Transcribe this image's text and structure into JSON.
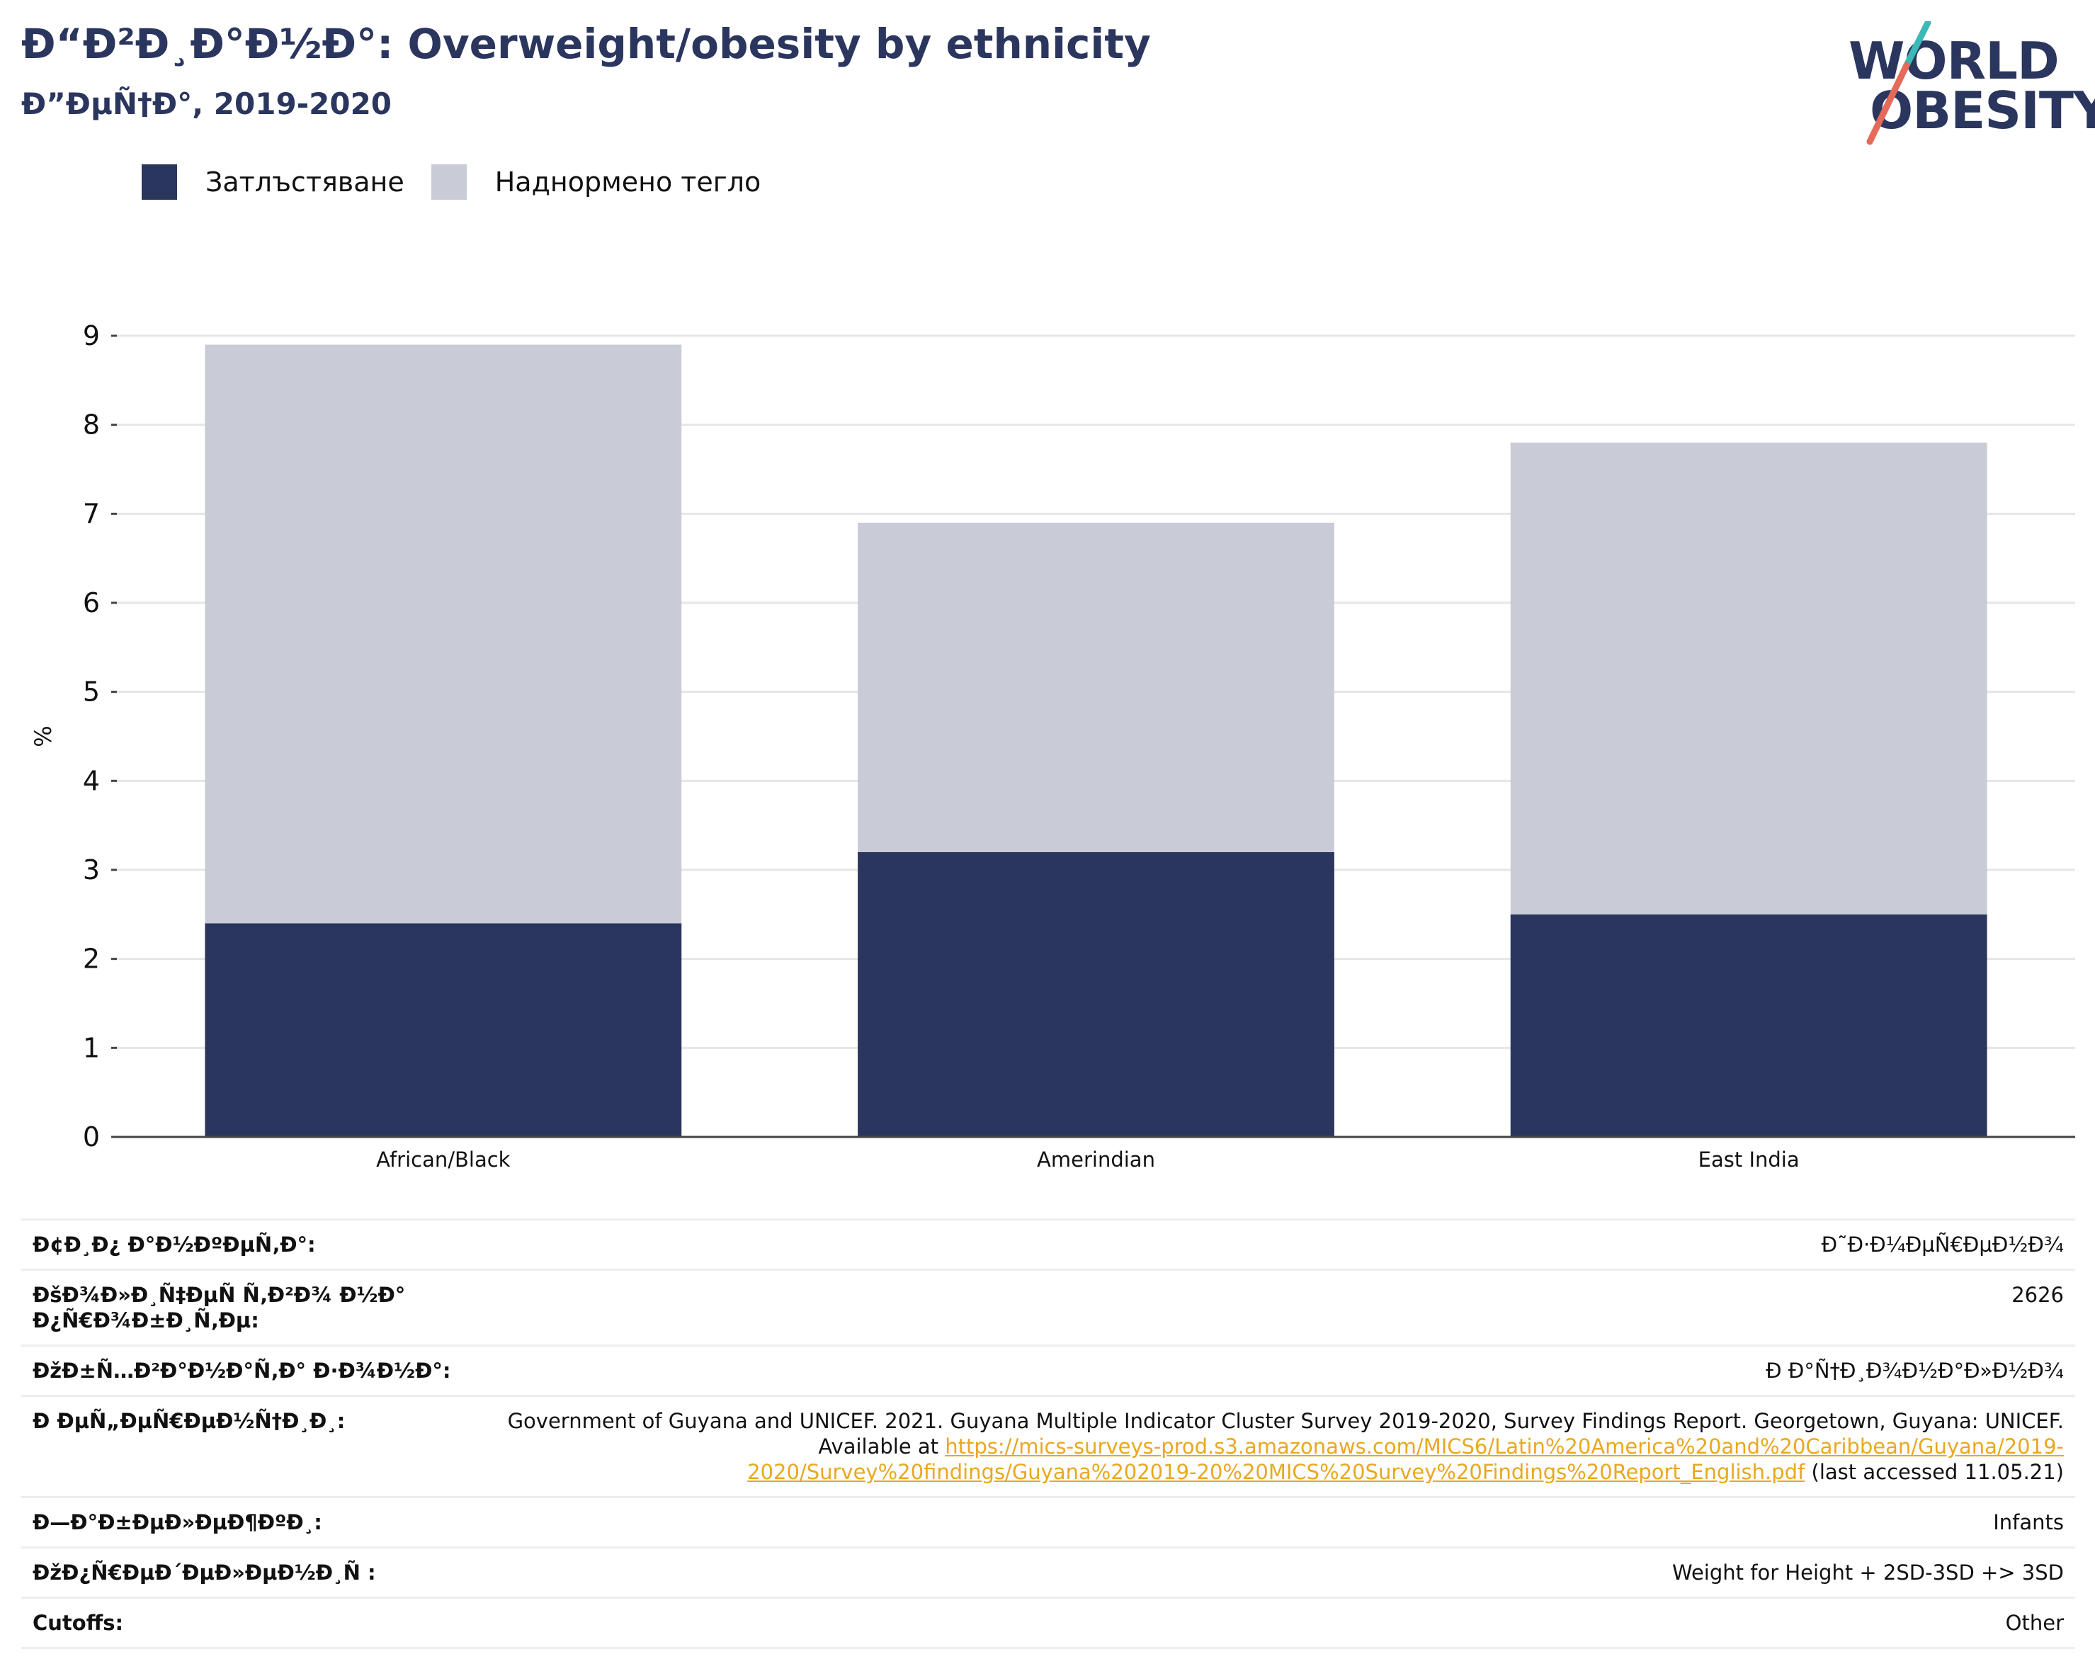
{
  "title": "Ð“Ð²Ð¸Ð°Ð½Ð°: Overweight/obesity by ethnicity",
  "subtitle": "Ð”ÐµÑ†Ð°, 2019-2020",
  "logo": {
    "line1": "WORLD",
    "line2": "OBESITY",
    "accent_teal": "#3bb8b8",
    "accent_coral": "#e46a5a"
  },
  "colors": {
    "obesity": "#2b365f",
    "overweight": "#c9cbd7",
    "text_dark": "#2b365f",
    "link": "#e8a820"
  },
  "legend": [
    {
      "label": "Затлъстяване",
      "color": "#2b365f"
    },
    {
      "label": "Наднормено тегло",
      "color": "#c9cbd7"
    }
  ],
  "chart_data": {
    "type": "bar",
    "stacked": true,
    "categories": [
      "African/Black",
      "Amerindian",
      "East India"
    ],
    "series": [
      {
        "name": "Затлъстяване",
        "values": [
          2.4,
          3.2,
          2.5
        ],
        "color": "#2b365f"
      },
      {
        "name": "Наднормено тегло",
        "values": [
          6.5,
          3.7,
          5.3
        ],
        "color": "#c9cbd7"
      }
    ],
    "ylabel": "%",
    "xlabel": "",
    "ylim": [
      0,
      9
    ],
    "yticks": [
      0,
      1,
      2,
      3,
      4,
      5,
      6,
      7,
      8,
      9
    ],
    "grid": true,
    "legend_position": "top-left"
  },
  "table": [
    {
      "key": "Ð¢Ð¸Ð¿ Ð°Ð½ÐºÐµÑ‚Ð°:",
      "value": "Ð˜Ð·Ð¼ÐµÑ€ÐµÐ½Ð¾"
    },
    {
      "key": "ÐšÐ¾Ð»Ð¸Ñ‡ÐµÑ Ñ‚Ð²Ð¾ Ð½Ð° Ð¿Ñ€Ð¾Ð±Ð¸Ñ‚Ðµ:",
      "value": "2626"
    },
    {
      "key": "ÐžÐ±Ñ…Ð²Ð°Ð½Ð°Ñ‚Ð° Ð·Ð¾Ð½Ð°:",
      "value": "Ð Ð°Ñ†Ð¸Ð¾Ð½Ð°Ð»Ð½Ð¾"
    },
    {
      "key": "Ð ÐµÑ„ÐµÑ€ÐµÐ½Ñ†Ð¸Ð¸:",
      "value_before": "Government of Guyana and UNICEF. 2021. Guyana Multiple Indicator Cluster Survey 2019-2020, Survey Findings Report. Georgetown, Guyana: UNICEF. Available at ",
      "link": "https://mics-surveys-prod.s3.amazonaws.com/MICS6/Latin%20America%20and%20Caribbean/Guyana/2019-2020/Survey%20findings/Guyana%202019-20%20MICS%20Survey%20Findings%20Report_English.pdf",
      "value_after": " (last accessed 11.05.21)"
    },
    {
      "key": "Ð—Ð°Ð±ÐµÐ»ÐµÐ¶ÐºÐ¸:",
      "value": "Infants"
    },
    {
      "key": "ÐžÐ¿Ñ€ÐµÐ´ÐµÐ»ÐµÐ½Ð¸Ñ :",
      "value": "Weight for Height + 2SD-3SD +> 3SD"
    },
    {
      "key": "Cutoffs:",
      "value": "Other"
    }
  ]
}
